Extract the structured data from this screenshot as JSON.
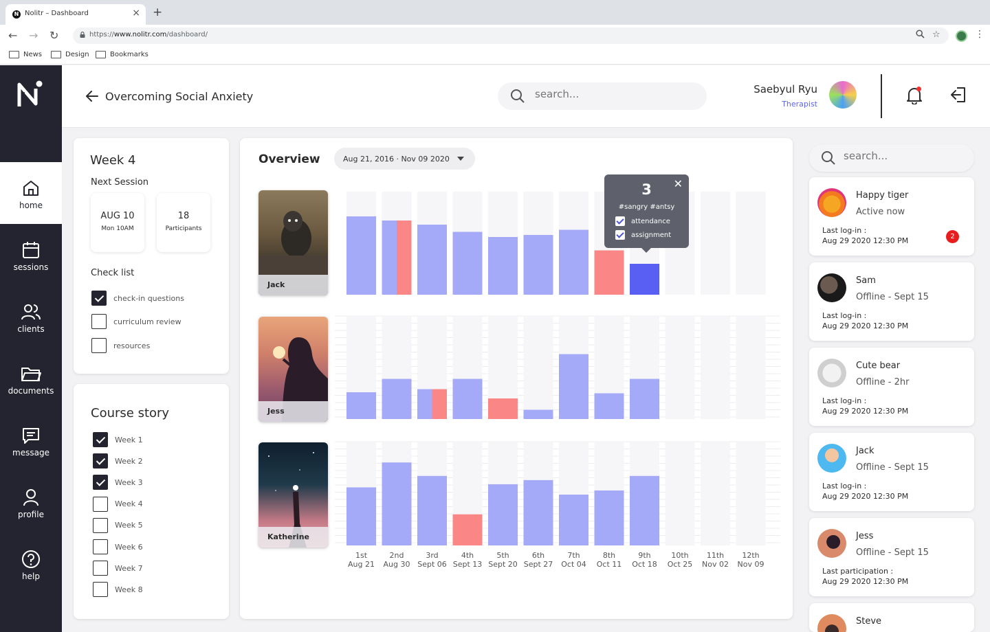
{
  "browser": {
    "tab_title": "Nolitr – Dashboard",
    "tab_favicon": "N",
    "url_prefix": "https://",
    "url_host": "www.nolitr.com",
    "url_path": "/dashboard/",
    "bookmarks": [
      "News",
      "Design",
      "Bookmarks"
    ]
  },
  "sidebar": {
    "items": [
      {
        "label": "home",
        "icon": "home-icon",
        "active": true
      },
      {
        "label": "sessions",
        "icon": "calendar-icon"
      },
      {
        "label": "clients",
        "icon": "users-icon"
      },
      {
        "label": "documents",
        "icon": "folder-icon"
      },
      {
        "label": "message",
        "icon": "message-icon"
      },
      {
        "label": "profile",
        "icon": "user-icon"
      },
      {
        "label": "help",
        "icon": "help-icon"
      }
    ]
  },
  "header": {
    "title": "Overcoming Social Anxiety",
    "search_placeholder": "search...",
    "user_name": "Saebyul Ryu",
    "user_role": "Therapist"
  },
  "week_card": {
    "title": "Week 4",
    "next_session_label": "Next Session",
    "date_big": "AUG 10",
    "date_small": "Mon 10AM",
    "participants_count": "18",
    "participants_label": "Participants",
    "checklist_title": "Check list",
    "checklist": [
      {
        "label": "check-in questions",
        "checked": true
      },
      {
        "label": "curriculum review",
        "checked": false
      },
      {
        "label": "resources",
        "checked": false
      }
    ]
  },
  "course_story": {
    "title": "Course story",
    "weeks": [
      {
        "label": "Week 1",
        "checked": true
      },
      {
        "label": "Week 2",
        "checked": true
      },
      {
        "label": "Week 3",
        "checked": true
      },
      {
        "label": "Week 4",
        "checked": false
      },
      {
        "label": "Week 5",
        "checked": false
      },
      {
        "label": "Week 6",
        "checked": false
      },
      {
        "label": "Week 7",
        "checked": false
      },
      {
        "label": "Week 8",
        "checked": false
      }
    ]
  },
  "overview": {
    "title": "Overview",
    "date_range": "Aug 21, 2016 · Nov 09 2020",
    "tooltip": {
      "value": "3",
      "tags": "#sangry  #antsy",
      "items": [
        {
          "label": "attendance",
          "checked": true
        },
        {
          "label": "assignment",
          "checked": true
        }
      ]
    }
  },
  "chart_data": {
    "type": "bar",
    "categories": [
      "1st",
      "2nd",
      "3rd",
      "4th",
      "5th",
      "6th",
      "7th",
      "8th",
      "9th",
      "10th",
      "11th",
      "12th"
    ],
    "dates": [
      "Aug 21",
      "Aug 30",
      "Sept 06",
      "Sept 13",
      "Sept 20",
      "Sept 27",
      "Oct 04",
      "Oct 11",
      "Oct 18",
      "Oct 25",
      "Nov 02",
      "Nov 09"
    ],
    "y_scale": [
      0,
      10
    ],
    "colors": {
      "normal": "#a4aaf8",
      "low": "#fb8686",
      "selected": "#5a5ff3",
      "track": "#f6f6f8"
    },
    "series": [
      {
        "name": "Jack",
        "values": [
          7.6,
          7.2,
          6.8,
          6.1,
          5.6,
          5.8,
          6.3,
          4.3,
          3.0,
          null,
          null,
          null
        ],
        "split": [
          0,
          1,
          0,
          0,
          0,
          0,
          0,
          0,
          0,
          0,
          0,
          0
        ],
        "status": [
          "normal",
          "normal",
          "normal",
          "normal",
          "normal",
          "normal",
          "normal",
          "low",
          "selected",
          "normal",
          "normal",
          "normal"
        ]
      },
      {
        "name": "Jess",
        "values": [
          2.6,
          3.9,
          2.9,
          3.9,
          2.0,
          0.9,
          6.3,
          2.5,
          3.9,
          null,
          null,
          null
        ],
        "split": [
          0,
          0,
          1,
          0,
          0,
          0,
          0,
          0,
          0,
          0,
          0,
          0
        ],
        "status": [
          "normal",
          "normal",
          "normal",
          "normal",
          "low",
          "normal",
          "normal",
          "normal",
          "normal",
          "normal",
          "normal",
          "normal"
        ]
      },
      {
        "name": "Katherine",
        "values": [
          5.6,
          8.0,
          6.7,
          3.0,
          5.9,
          6.3,
          4.9,
          5.3,
          6.7,
          null,
          null,
          null
        ],
        "split": [
          0,
          0,
          0,
          0,
          0,
          0,
          0,
          0,
          0,
          0,
          0,
          0
        ],
        "status": [
          "normal",
          "normal",
          "normal",
          "low",
          "normal",
          "normal",
          "normal",
          "normal",
          "normal",
          "normal",
          "normal",
          "normal"
        ]
      }
    ]
  },
  "clients_panel": {
    "search_placeholder": "search...",
    "clients": [
      {
        "name": "Happy tiger",
        "status": "Active now",
        "last_label": "Last log-in :",
        "last_time": "Aug 29 2020 12:30 PM",
        "badge": "2"
      },
      {
        "name": "Sam",
        "status": "Offline - Sept 15",
        "last_label": "Last log-in :",
        "last_time": "Aug 29 2020 12:30 PM"
      },
      {
        "name": "Cute bear",
        "status": "Offline - 2hr",
        "last_label": "Last log-in :",
        "last_time": "Aug 29 2020 12:30 PM"
      },
      {
        "name": "Jack",
        "status": "Offline - Sept 15",
        "last_label": "Last log-in :",
        "last_time": "Aug 29 2020 12:30 PM"
      },
      {
        "name": "Jess",
        "status": "Offline - Sept 15",
        "last_label": "Last participation :",
        "last_time": "Aug 29 2020 12:30 PM"
      },
      {
        "name": "Steve",
        "status": "",
        "last_label": "",
        "last_time": ""
      }
    ]
  }
}
